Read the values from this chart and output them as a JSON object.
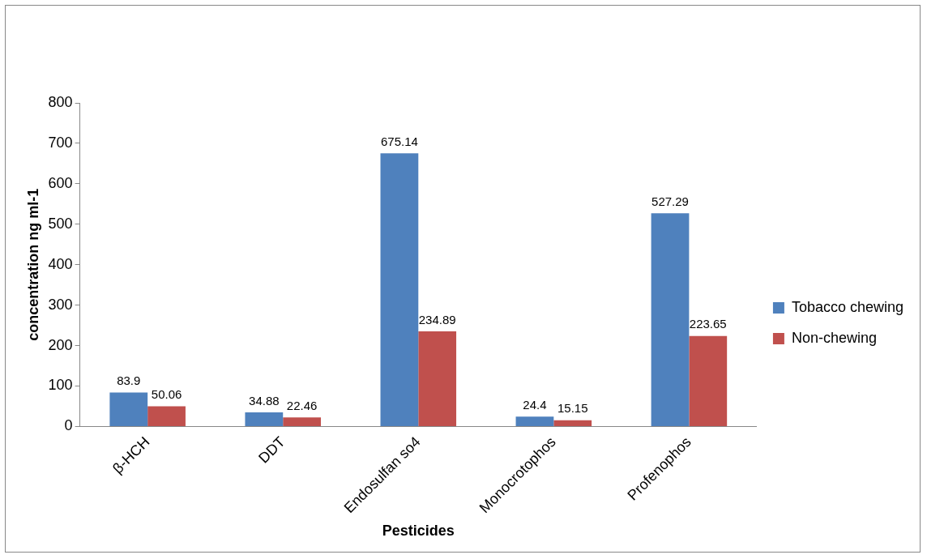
{
  "chart_data": {
    "type": "bar",
    "xlabel": "Pesticides",
    "ylabel": "concentration ng ml-1",
    "categories": [
      "β-HCH",
      "DDT",
      "Endosulfan so4",
      "Monocrotophos",
      "Profenophos"
    ],
    "series": [
      {
        "name": "Tobacco chewing",
        "color": "#4f81bd",
        "values": [
          83.9,
          34.88,
          675.14,
          24.4,
          527.29
        ]
      },
      {
        "name": "Non-chewing",
        "color": "#c0504d",
        "values": [
          50.06,
          22.46,
          234.89,
          15.15,
          223.65
        ]
      }
    ],
    "ylim": [
      0,
      800
    ],
    "yticks": [
      0,
      100,
      200,
      300,
      400,
      500,
      600,
      700,
      800
    ],
    "grid": false,
    "legend": "right",
    "data_labels": true
  }
}
